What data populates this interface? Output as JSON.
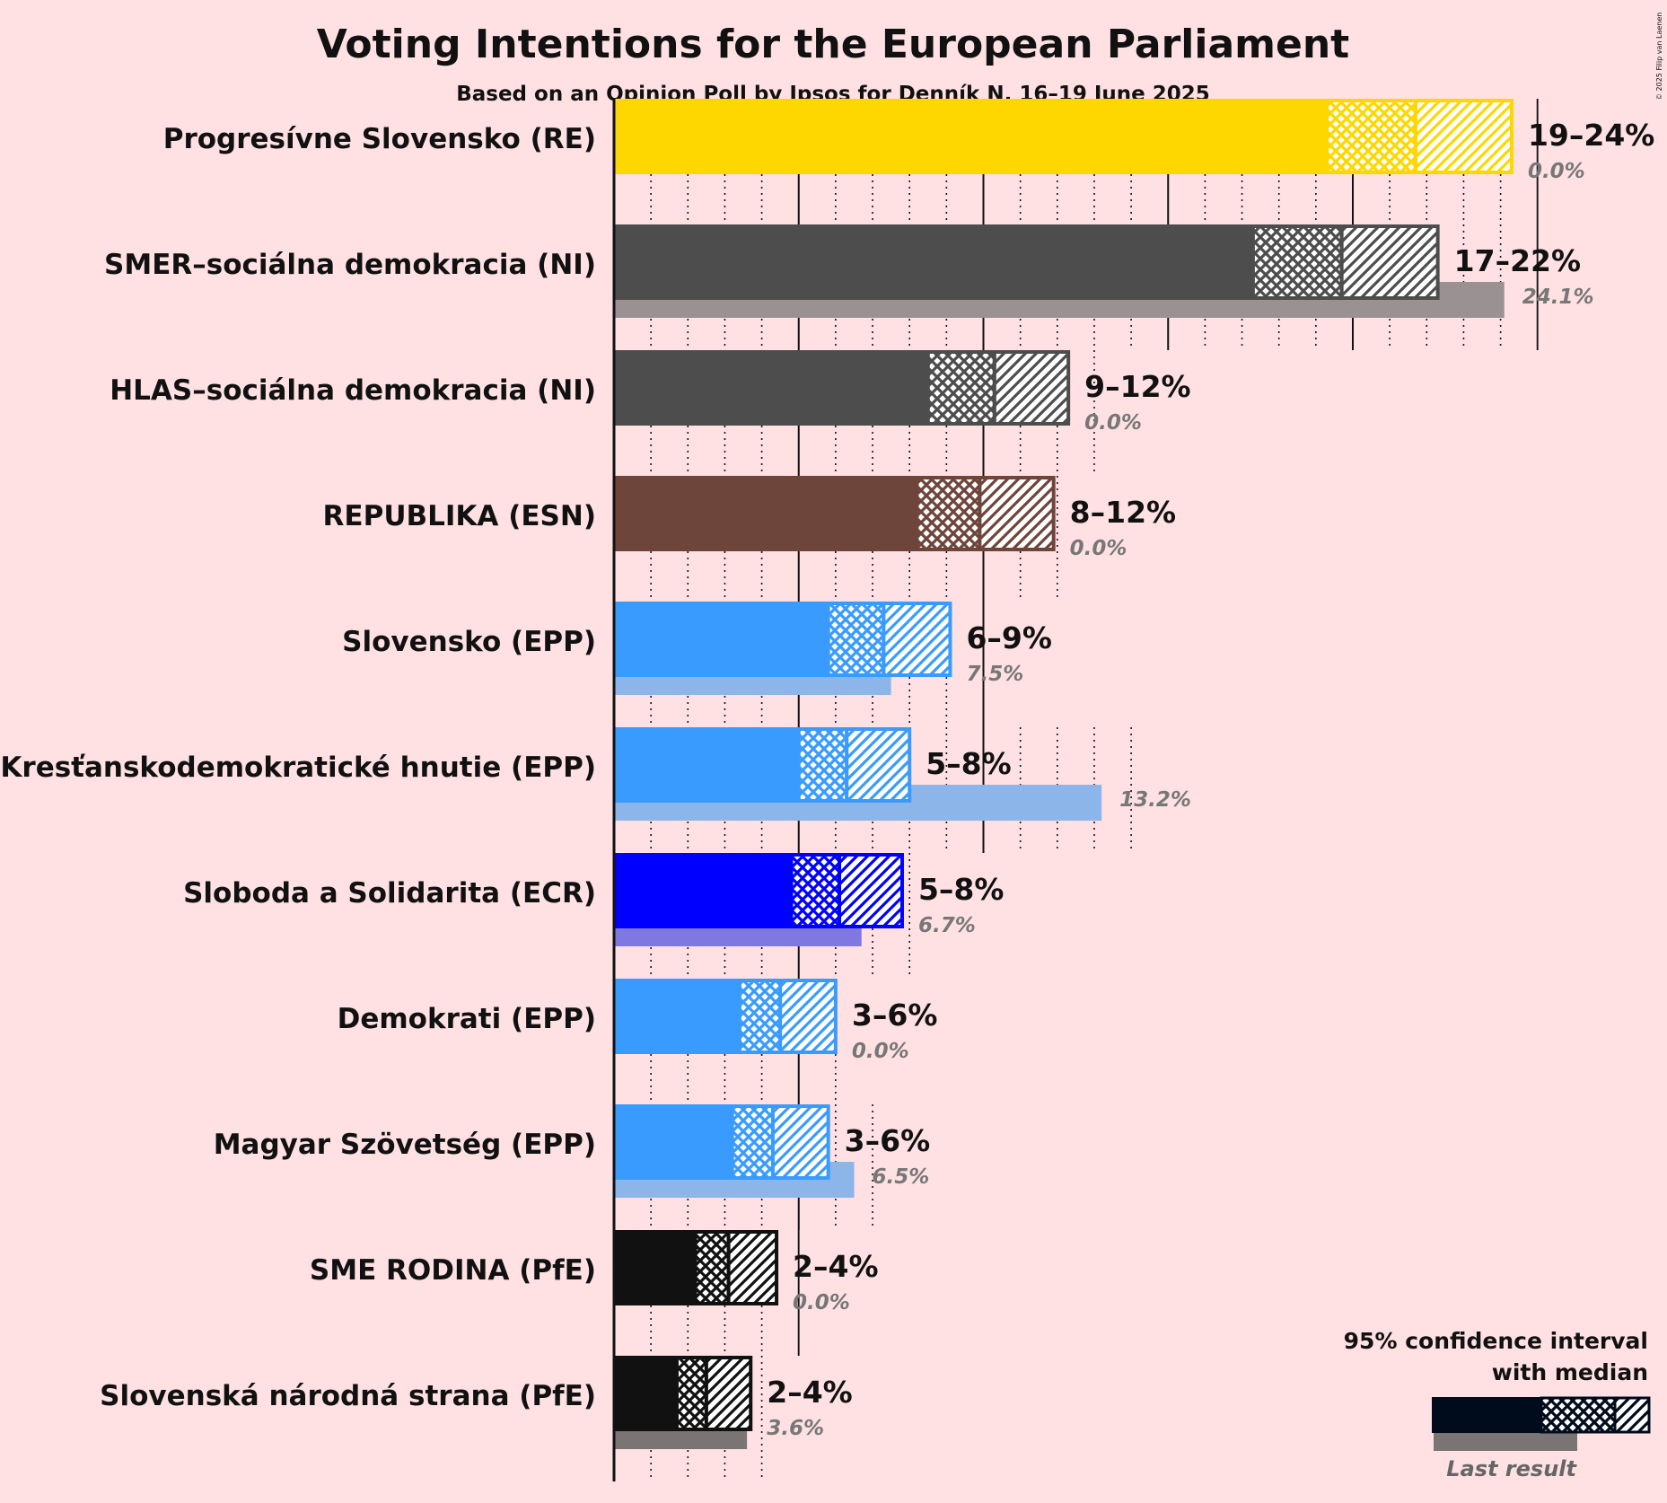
{
  "title": "Voting Intentions for the European Parliament",
  "subtitle": "Based on an Opinion Poll by Ipsos for Denník N, 16–19 June 2025",
  "copyright": "© 2025 Filip van Laenen",
  "legend": {
    "ci_text_line1": "95% confidence interval",
    "ci_text_line2": "with median",
    "last_result_text": "Last result",
    "color": "#000B1B"
  },
  "chart_data": {
    "type": "bar",
    "orientation": "horizontal",
    "unit": "%",
    "xlim": [
      0,
      26
    ],
    "major_gridlines_every": 5,
    "minor_gridlines_every": 1,
    "categories": [
      "Progresívne Slovensko (RE)",
      "SMER–sociálna demokracia (NI)",
      "HLAS–sociálna demokracia (NI)",
      "REPUBLIKA (ESN)",
      "Slovensko (EPP)",
      "Kresťanskodemokratické hnutie (EPP)",
      "Sloboda a Solidarita (ECR)",
      "Demokrati (EPP)",
      "Magyar Szövetség (EPP)",
      "SME RODINA (PfE)",
      "Slovenská národná strana (PfE)"
    ],
    "series": [
      {
        "party": "Progresívne Slovensko (RE)",
        "range_label": "19–24%",
        "ci_low": 19.3,
        "median": 21.7,
        "ci_high": 24.3,
        "last_result": 0.0,
        "last_label": "0.0%",
        "color": "#FFD700",
        "last_color": "#FFD700"
      },
      {
        "party": "SMER–sociálna demokracia (NI)",
        "range_label": "17–22%",
        "ci_low": 17.3,
        "median": 19.7,
        "ci_high": 22.3,
        "last_result": 24.1,
        "last_label": "24.1%",
        "color": "#4D4D4D",
        "last_color": "#9A9292"
      },
      {
        "party": "HLAS–sociálna demokracia (NI)",
        "range_label": "9–12%",
        "ci_low": 8.5,
        "median": 10.3,
        "ci_high": 12.3,
        "last_result": 0.0,
        "last_label": "0.0%",
        "color": "#4D4D4D",
        "last_color": "#9A9292"
      },
      {
        "party": "REPUBLIKA (ESN)",
        "range_label": "8–12%",
        "ci_low": 8.2,
        "median": 9.9,
        "ci_high": 11.9,
        "last_result": 0.0,
        "last_label": "0.0%",
        "color": "#6E453A",
        "last_color": "#A98D85"
      },
      {
        "party": "Slovensko (EPP)",
        "range_label": "6–9%",
        "ci_low": 5.8,
        "median": 7.3,
        "ci_high": 9.1,
        "last_result": 7.5,
        "last_label": "7.5%",
        "color": "#3A9BFF",
        "last_color": "#8CB5EA"
      },
      {
        "party": "Kresťanskodemokratické hnutie (EPP)",
        "range_label": "5–8%",
        "ci_low": 5.0,
        "median": 6.3,
        "ci_high": 8.0,
        "last_result": 13.2,
        "last_label": "13.2%",
        "color": "#3A9BFF",
        "last_color": "#8CB5EA"
      },
      {
        "party": "Sloboda a Solidarita (ECR)",
        "range_label": "5–8%",
        "ci_low": 4.8,
        "median": 6.1,
        "ci_high": 7.8,
        "last_result": 6.7,
        "last_label": "6.7%",
        "color": "#0000FF",
        "last_color": "#7F78E0"
      },
      {
        "party": "Demokrati (EPP)",
        "range_label": "3–6%",
        "ci_low": 3.4,
        "median": 4.5,
        "ci_high": 6.0,
        "last_result": 0.0,
        "last_label": "0.0%",
        "color": "#3A9BFF",
        "last_color": "#8CB5EA"
      },
      {
        "party": "Magyar Szövetség (EPP)",
        "range_label": "3–6%",
        "ci_low": 3.2,
        "median": 4.3,
        "ci_high": 5.8,
        "last_result": 6.5,
        "last_label": "6.5%",
        "color": "#3A9BFF",
        "last_color": "#8CB5EA"
      },
      {
        "party": "SME RODINA (PfE)",
        "range_label": "2–4%",
        "ci_low": 2.2,
        "median": 3.1,
        "ci_high": 4.4,
        "last_result": 0.0,
        "last_label": "0.0%",
        "color": "#111111",
        "last_color": "#7A7474"
      },
      {
        "party": "Slovenská národná strana (PfE)",
        "range_label": "2–4%",
        "ci_low": 1.7,
        "median": 2.5,
        "ci_high": 3.7,
        "last_result": 3.6,
        "last_label": "3.6%",
        "color": "#111111",
        "last_color": "#7A7474"
      }
    ]
  }
}
